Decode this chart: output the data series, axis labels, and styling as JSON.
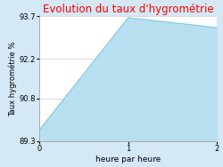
{
  "title": "Evolution du taux d'hygrométrie",
  "title_color": "#ff0000",
  "xlabel": "heure par heure",
  "ylabel": "Taux hygrométrie %",
  "x": [
    0,
    1,
    2
  ],
  "y": [
    89.7,
    93.65,
    93.3
  ],
  "fill_color": "#b8dff0",
  "fill_alpha": 1.0,
  "line_color": "#7fc8e8",
  "line_width": 0.8,
  "ylim": [
    89.3,
    93.7
  ],
  "xlim": [
    0,
    2
  ],
  "yticks": [
    89.3,
    90.8,
    92.2,
    93.7
  ],
  "xticks": [
    0,
    1,
    2
  ],
  "bg_color": "#d4e8f5",
  "plot_bg_color": "#ffffff",
  "title_fontsize": 8.5,
  "axis_fontsize": 6.5,
  "tick_fontsize": 6,
  "ylabel_fontsize": 6
}
